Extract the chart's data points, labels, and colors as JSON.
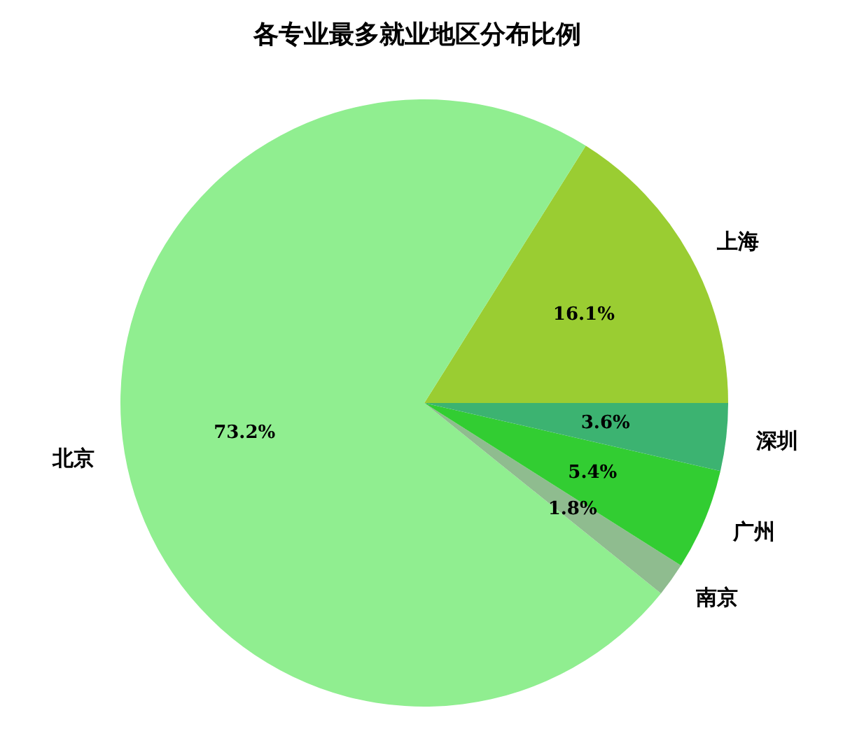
{
  "chart_data": {
    "type": "pie",
    "title": "各专业最多就业地区分布比例",
    "categories": [
      "上海",
      "北京",
      "南京",
      "广州",
      "深圳"
    ],
    "values": [
      16.1,
      73.2,
      1.8,
      5.4,
      3.6
    ],
    "colors": [
      "#9acd32",
      "#90ee90",
      "#8fbc8f",
      "#32cd32",
      "#3cb371"
    ],
    "value_labels": [
      "16.1%",
      "73.2%",
      "1.8%",
      "5.4%",
      "3.6%"
    ]
  }
}
